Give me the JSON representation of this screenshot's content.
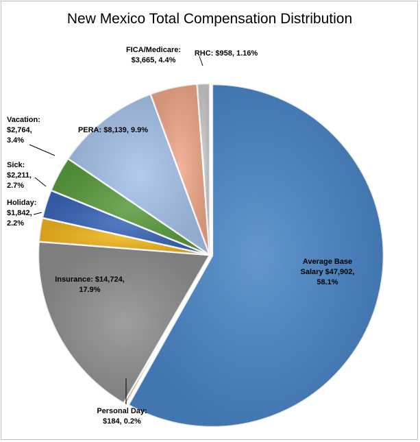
{
  "chart_data": {
    "type": "pie",
    "title": "New Mexico Total Compensation Distribution",
    "slices": [
      {
        "name": "Average Base Salary",
        "value": 47902,
        "percent": 58.1,
        "color": "#4a86c8",
        "label_lines": [
          "Average  Base",
          "Salary $47,902,",
          "58.1%"
        ]
      },
      {
        "name": "Personal Day",
        "value": 184,
        "percent": 0.2,
        "color": "#ed7d31",
        "label_lines": [
          "Personal Day:",
          "$184, 0.2%"
        ]
      },
      {
        "name": "Insurance",
        "value": 14724,
        "percent": 17.9,
        "color": "#8f8f8f",
        "label_lines": [
          "Insurance: $14,724,",
          "17.9%"
        ]
      },
      {
        "name": "Holiday",
        "value": 1842,
        "percent": 2.2,
        "color": "#f2b51c",
        "label_lines": [
          "Holiday:",
          "$1,842,",
          "2.2%"
        ]
      },
      {
        "name": "Sick",
        "value": 2211,
        "percent": 2.7,
        "color": "#3a66b8",
        "label_lines": [
          "Sick:",
          "$2,211,",
          "2.7%"
        ]
      },
      {
        "name": "Vacation",
        "value": 2764,
        "percent": 3.4,
        "color": "#5a9d3f",
        "label_lines": [
          "Vacation:",
          "$2,764,",
          "3.4%"
        ]
      },
      {
        "name": "PERA",
        "value": 8139,
        "percent": 9.9,
        "color": "#a6c3ea",
        "label_lines": [
          "PERA: $8,139, 9.9%"
        ]
      },
      {
        "name": "FICA/Medicare",
        "value": 3665,
        "percent": 4.4,
        "color": "#f0a88a",
        "label_lines": [
          "FICA/Medicare:",
          "$3,665, 4.4%"
        ]
      },
      {
        "name": "RHC",
        "value": 958,
        "percent": 1.16,
        "color": "#c9c9c9",
        "label_lines": [
          "RHC: $958, 1.16%"
        ]
      }
    ]
  }
}
